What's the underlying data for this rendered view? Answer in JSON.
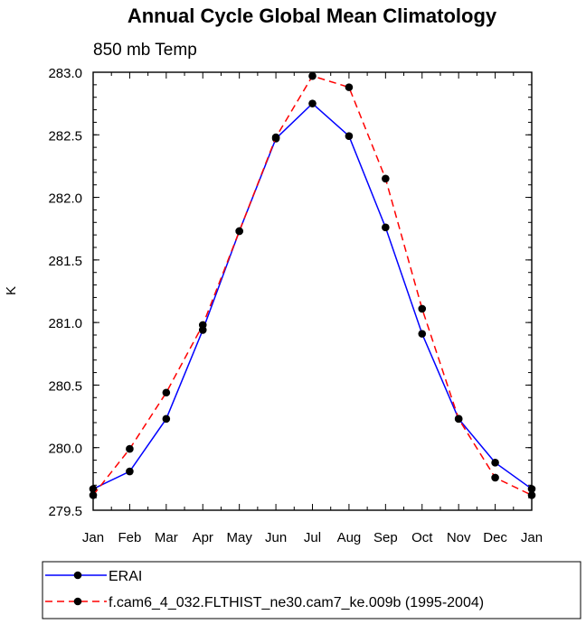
{
  "chart_data": {
    "type": "line",
    "title": "Annual Cycle Global Mean Climatology",
    "subtitle": "850 mb Temp",
    "xlabel": "",
    "ylabel": "K",
    "categories": [
      "Jan",
      "Feb",
      "Mar",
      "Apr",
      "May",
      "Jun",
      "Jul",
      "Aug",
      "Sep",
      "Oct",
      "Nov",
      "Dec",
      "Jan"
    ],
    "yticks": [
      "279.5",
      "280.0",
      "280.5",
      "281.0",
      "281.5",
      "282.0",
      "282.5",
      "283.0"
    ],
    "ylim": [
      279.5,
      283.0
    ],
    "grid": false,
    "legend_placement": "bottom",
    "series": [
      {
        "name": "ERAI",
        "color": "#0000ff",
        "line_style": "solid",
        "values": [
          279.67,
          279.81,
          280.23,
          280.94,
          281.73,
          282.47,
          282.75,
          282.49,
          281.76,
          280.91,
          280.23,
          279.88,
          279.67
        ]
      },
      {
        "name": "f.cam6_4_032.FLTHIST_ne30.cam7_ke.009b (1995-2004)",
        "color": "#ff0000",
        "line_style": "dashed",
        "values": [
          279.62,
          279.99,
          280.44,
          280.98,
          281.73,
          282.48,
          282.97,
          282.88,
          282.15,
          281.11,
          280.23,
          279.76,
          279.62
        ]
      }
    ]
  }
}
